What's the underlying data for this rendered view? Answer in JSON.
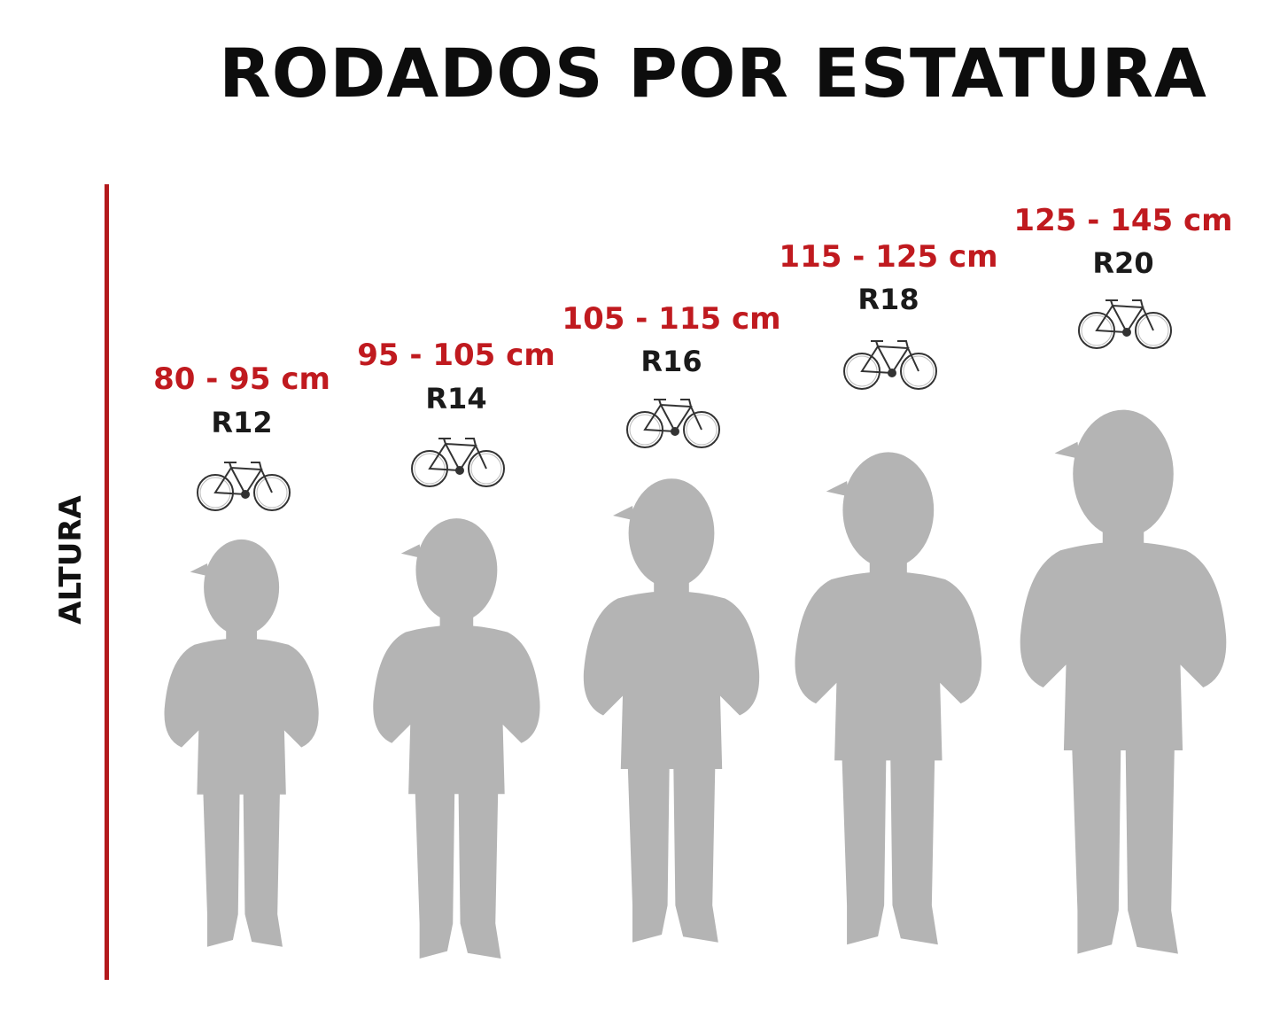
{
  "title": "RODADOS POR ESTATURA",
  "axis_label": "ALTURA",
  "colors": {
    "accent": "#b3191c",
    "range_text": "#c01a1f",
    "silhouette": "#b4b4b4"
  },
  "sizes": [
    {
      "range": "80 - 95 cm",
      "rodado": "R12",
      "icon": "bicycle-icon"
    },
    {
      "range": "95 - 105 cm",
      "rodado": "R14",
      "icon": "bicycle-icon"
    },
    {
      "range": "105 - 115 cm",
      "rodado": "R16",
      "icon": "bicycle-icon"
    },
    {
      "range": "115 - 125 cm",
      "rodado": "R18",
      "icon": "bicycle-icon"
    },
    {
      "range": "125 - 145 cm",
      "rodado": "R20",
      "icon": "bicycle-icon"
    }
  ]
}
